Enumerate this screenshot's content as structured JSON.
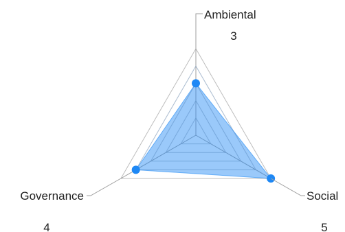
{
  "chart_data": {
    "type": "radar",
    "title": "",
    "categories": [
      "Ambiental",
      "Social",
      "Governance"
    ],
    "series": [
      {
        "values": [
          3,
          5,
          4
        ],
        "color": "#1e88f5",
        "fill": "#1e88f5"
      }
    ],
    "value_labels": [
      "3",
      "5",
      "4"
    ],
    "scale": [
      0,
      5
    ],
    "grid_levels": 5,
    "legend": "none",
    "grid": true
  }
}
